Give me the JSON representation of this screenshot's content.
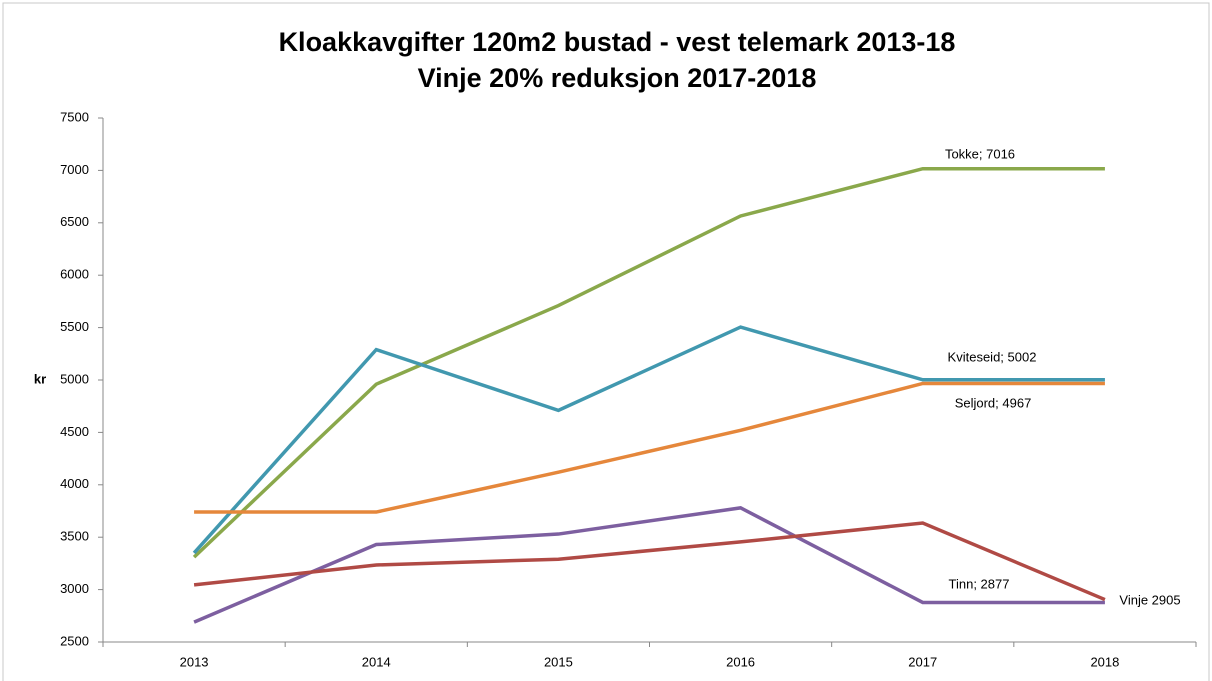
{
  "chart_data": {
    "type": "line",
    "title": "Kloakkavgifter 120m2 bustad  - vest telemark 2013-18",
    "subtitle": "Vinje 20% reduksjon 2017-2018",
    "y_label": "kr",
    "categories": [
      "2013",
      "2014",
      "2015",
      "2016",
      "2017",
      "2018"
    ],
    "series": [
      {
        "color": "#8aa84b",
        "values": [
          3310,
          4960,
          5710,
          6565,
          7016,
          7016
        ]
      },
      {
        "color": "#4198af",
        "values": [
          3350,
          5290,
          4710,
          5505,
          5002,
          5002
        ]
      },
      {
        "color": "#e5873b",
        "values": [
          3740,
          3740,
          4120,
          4520,
          4967,
          4967
        ]
      },
      {
        "color": "#7d5fa0",
        "values": [
          2690,
          3430,
          3530,
          3780,
          2877,
          2877
        ]
      },
      {
        "color": "#b04a45",
        "values": [
          3045,
          3235,
          3290,
          3455,
          3635,
          2905
        ]
      }
    ],
    "annotations": [
      "Tokke; 7016",
      "Kviteseid; 5002",
      "Seljord; 4967",
      "Tinn; 2877",
      "Vinje 2905"
    ],
    "ylim": [
      2500,
      7500
    ],
    "yticks": [
      2500,
      3000,
      3500,
      4000,
      4500,
      5000,
      5500,
      6000,
      6500,
      7000,
      7500
    ],
    "grid": false
  }
}
